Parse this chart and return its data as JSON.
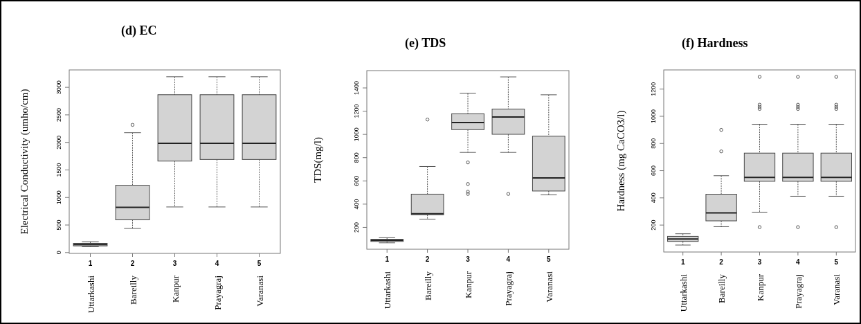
{
  "chart_data": [
    {
      "type": "box",
      "title": "(d) EC",
      "ylabel": "Electrical Conductivity (umho/cm)",
      "x": [
        1,
        2,
        3,
        4,
        5
      ],
      "xlim": [
        0.5,
        5.5
      ],
      "xticks": [
        1,
        2,
        3,
        4,
        5
      ],
      "ylim": [
        -15,
        3316
      ],
      "yticks": [
        0,
        500,
        1000,
        1500,
        2000,
        2500,
        3000
      ],
      "annotations": [
        "Uttarkashi",
        "Bareilly",
        "Kanpur",
        "Prayagraj",
        "Varanasi"
      ],
      "series": [
        {
          "color": "#d3d3d3",
          "boxes": [
            {
              "low": 105,
              "q1": 121,
              "median": 146,
              "q3": 167,
              "high": 197
            },
            {
              "low": 439,
              "q1": 594,
              "median": 820,
              "q3": 1222,
              "high": 2176,
              "outliers": [
                2318
              ]
            },
            {
              "low": 828,
              "q1": 1661,
              "median": 1983,
              "q3": 2866,
              "high": 3192
            },
            {
              "low": 828,
              "q1": 1690,
              "median": 1983,
              "q3": 2866,
              "high": 3192
            },
            {
              "low": 828,
              "q1": 1690,
              "median": 1983,
              "q3": 2866,
              "high": 3192
            }
          ]
        }
      ]
    },
    {
      "type": "box",
      "title": "(e) TDS",
      "ylabel": "TDS(mg/l)",
      "x": [
        1,
        2,
        3,
        4,
        5
      ],
      "xlim": [
        0.5,
        5.5
      ],
      "xticks": [
        1,
        2,
        3,
        4,
        5
      ],
      "ylim": [
        12,
        1549
      ],
      "yticks": [
        200,
        400,
        600,
        800,
        1000,
        1200,
        1400
      ],
      "annotations": [
        "Uttarkashi",
        "Bareilly",
        "Kanpur",
        "Prayagraj",
        "Varanasi"
      ],
      "series": [
        {
          "color": "#d3d3d3",
          "boxes": [
            {
              "low": 67,
              "q1": 79,
              "median": 89,
              "q3": 97,
              "high": 111
            },
            {
              "low": 271,
              "q1": 309,
              "median": 317,
              "q3": 486,
              "high": 724,
              "outliers": [
                1128
              ]
            },
            {
              "low": 845,
              "q1": 1041,
              "median": 1102,
              "q3": 1178,
              "high": 1354,
              "outliers": [
                759,
                573,
                507,
                488
              ]
            },
            {
              "low": 845,
              "q1": 1001,
              "median": 1150,
              "q3": 1218,
              "high": 1495,
              "outliers": [
                488
              ]
            },
            {
              "low": 480,
              "q1": 513,
              "median": 626,
              "q3": 985,
              "high": 1341
            }
          ]
        }
      ]
    },
    {
      "type": "box",
      "title": "(f) Hardness",
      "ylabel": "Hardness (mg CaCO3/l)",
      "x": [
        1,
        2,
        3,
        4,
        5
      ],
      "xlim": [
        0.5,
        5.5
      ],
      "xticks": [
        1,
        2,
        3,
        4,
        5
      ],
      "ylim": [
        2,
        1341
      ],
      "yticks": [
        200,
        400,
        600,
        800,
        1000,
        1200
      ],
      "annotations": [
        "Uttarkashi",
        "Bareilly",
        "Kanpur",
        "Prayagraj",
        "Varanasi"
      ],
      "series": [
        {
          "color": "#d3d3d3",
          "boxes": [
            {
              "low": 53,
              "q1": 80,
              "median": 97,
              "q3": 117,
              "high": 136
            },
            {
              "low": 188,
              "q1": 231,
              "median": 290,
              "q3": 427,
              "high": 563,
              "outliers": [
                742,
                900
              ]
            },
            {
              "low": 295,
              "q1": 522,
              "median": 551,
              "q3": 729,
              "high": 941,
              "outliers": [
                1290,
                1085,
                1069,
                1054,
                185
              ]
            },
            {
              "low": 412,
              "q1": 522,
              "median": 551,
              "q3": 729,
              "high": 941,
              "outliers": [
                1290,
                1085,
                1069,
                1054,
                185
              ]
            },
            {
              "low": 412,
              "q1": 522,
              "median": 551,
              "q3": 729,
              "high": 941,
              "outliers": [
                1290,
                1085,
                1069,
                1054,
                185
              ]
            }
          ]
        }
      ]
    }
  ]
}
